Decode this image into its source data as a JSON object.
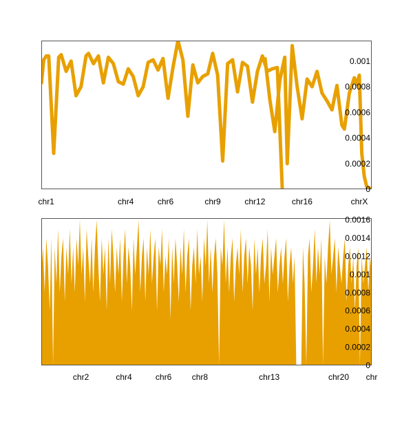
{
  "colors": {
    "series": "#E8A000",
    "frame": "#555555",
    "background": "#ffffff"
  },
  "chart_data": [
    {
      "type": "line",
      "grid": false,
      "legend": "none",
      "x_tick_labels": [
        "chr1",
        "chr4",
        "chr6",
        "chr9",
        "chr12",
        "chr16",
        "chrX"
      ],
      "x_tick_positions": [
        2,
        34,
        50,
        69,
        86,
        105,
        128
      ],
      "y_tick_labels": [
        "0",
        "0.0002",
        "0.0004",
        "0.0006",
        "0.0008",
        "0.001"
      ],
      "y_ticks": [
        0,
        0.0002,
        0.0004,
        0.0006,
        0.0008,
        0.001
      ],
      "xlim": [
        0,
        133
      ],
      "ylim": [
        0,
        0.00116
      ],
      "series": [
        {
          "values": [
            0.00082,
            0.00101,
            0.00104,
            0.00104,
            0.00028,
            0.00103,
            0.00105,
            0.00092,
            0.001,
            0.00073,
            0.0008,
            0.00104,
            0.00106,
            0.00098,
            0.00104,
            0.00083,
            0.00103,
            0.00098,
            0.00084,
            0.00082,
            0.00094,
            0.00088,
            0.00073,
            0.0008,
            0.00099,
            0.00101,
            0.00093,
            0.00102,
            0.00071,
            0.00095,
            0.00116,
            0.00101,
            0.00057,
            0.00097,
            0.00083,
            0.00088,
            0.0009,
            0.00106,
            0.00089,
            0.00022,
            0.00098,
            0.00101,
            0.00076,
            0.00099,
            0.00096,
            0.00068,
            0.00092,
            0.00104,
            0.00092,
            0.00094,
            0.00095,
            0.0
          ],
          "x": [
            0,
            1,
            2,
            3,
            5,
            7,
            8,
            10,
            12,
            14,
            16,
            18,
            19,
            21,
            23,
            25,
            27,
            29,
            31,
            33,
            35,
            37,
            39,
            41,
            43,
            45,
            47,
            49,
            51,
            53,
            55,
            57,
            59,
            61,
            63,
            65,
            67,
            69,
            71,
            73,
            75,
            77,
            79,
            81,
            83,
            85,
            87,
            89,
            91,
            93,
            95,
            97
          ]
        },
        {
          "values": [
            0.00103,
            0.0007,
            0.00045,
            0.00085,
            0.00103,
            0.0002,
            0.00112,
            0.0008,
            0.00055,
            0.00086,
            0.0008,
            0.00092,
            0.00075,
            0.00069,
            0.00062,
            0.00081,
            0.0005,
            0.00047,
            0.00075,
            0.00087,
            0.00082,
            0.00089,
            0.00028,
            0.0001,
            2e-05,
            0.0
          ],
          "x": [
            90,
            92,
            94,
            96,
            98,
            99,
            101,
            103,
            105,
            107,
            109,
            111,
            113,
            115,
            117,
            119,
            121,
            122,
            124,
            126,
            127,
            128,
            129,
            130,
            131,
            133
          ]
        }
      ]
    },
    {
      "type": "area",
      "grid": false,
      "legend": "none",
      "x_tick_labels": [
        "chr2",
        "chr4",
        "chr6",
        "chr8",
        "chr13",
        "chr20",
        "chr"
      ],
      "x_tick_positions": [
        12,
        25,
        37,
        48,
        69,
        90,
        100
      ],
      "y_tick_labels": [
        "0",
        "0.0002",
        "0.0004",
        "0.0006",
        "0.0008",
        "0.001",
        "0.0012",
        "0.0014",
        "0.0016"
      ],
      "y_ticks": [
        0,
        0.0002,
        0.0004,
        0.0006,
        0.0008,
        0.001,
        0.0012,
        0.0014,
        0.0016
      ],
      "xlim": [
        0,
        100
      ],
      "ylim": [
        0,
        0.00162
      ],
      "series": [
        {
          "values": [
            0.001,
            0.0013,
            0.0008,
            0.0014,
            0.0011,
            0.0006,
            0.0014,
            0.0,
            0.0013,
            0.0009,
            0.0015,
            0.0008,
            0.0012,
            0.0014,
            0.0007,
            0.0013,
            0.001,
            0.0015,
            0.0009,
            0.0013,
            0.0008,
            0.0014,
            0.0011,
            0.0016,
            0.001,
            0.0013,
            0.0007,
            0.0015,
            0.0012,
            0.0009,
            0.0014,
            0.0008,
            0.0013,
            0.0016,
            0.0011,
            0.0007,
            0.0014,
            0.001,
            0.0013,
            0.0006,
            0.0014,
            0.0009,
            0.0015,
            0.0012,
            0.0008,
            0.0013,
            0.001,
            0.0014,
            0.0007,
            0.0012,
            0.0015,
            0.0009,
            0.0013,
            0.0011,
            0.0006,
            0.0014,
            0.001,
            0.0013,
            0.0016,
            0.0008,
            0.0012,
            0.0014,
            0.0007,
            0.0013,
            0.001,
            0.0015,
            0.0009,
            0.0012,
            0.0014,
            0.0006,
            0.0013,
            0.0011,
            0.0015,
            0.0008,
            0.0012,
            0.001,
            0.0014,
            0.0005,
            0.0013,
            0.0009,
            0.0014,
            0.0011,
            0.0007,
            0.0013,
            0.001,
            0.0015,
            0.0008,
            0.0012,
            0.0014,
            0.0006,
            0.0011,
            0.0013,
            0.0009,
            0.0015,
            0.001,
            0.0012,
            0.0007,
            0.0014,
            0.0011,
            0.0016,
            0.0009,
            0.0013,
            0.0008,
            0.0012,
            0.0014,
            0.001,
            0.0,
            0.0013,
            0.0011,
            0.0016,
            0.0009,
            0.0013,
            0.0008,
            0.0012,
            0.0014,
            0.0007,
            0.0011,
            0.0013,
            0.001,
            0.0015,
            0.0008,
            0.0012,
            0.0014,
            0.0009,
            0.0013,
            0.0011,
            0.0006,
            0.0014,
            0.001,
            0.0013,
            0.0008,
            0.0012,
            0.0014,
            0.0009,
            0.0011,
            0.0015,
            0.0007,
            0.0013,
            0.001,
            0.0012,
            0.0014,
            0.0008,
            0.0011,
            0.0013,
            0.0009,
            0.0012,
            0.0014,
            0.0007,
            0.0011,
            0.0013,
            0.0009,
            0.0012,
            0.0,
            0.0,
            0.0,
            0.0,
            0.0013,
            0.0009,
            0.0,
            0.0012,
            0.0014,
            0.0008,
            0.0011,
            0.0015,
            0.0009,
            0.0013,
            0.001,
            0.0014,
            0.0,
            0.0012,
            0.0009,
            0.0013,
            0.0016,
            0.001,
            0.0012,
            0.0014,
            0.0008,
            0.0013,
            0.0011,
            0.0009,
            0.0012,
            0.0014,
            0.0007,
            0.0011,
            0.0013,
            0.0009,
            0.0012,
            0.0006,
            0.0011,
            0.0013,
            0.0,
            0.0012,
            0.0009,
            0.0011,
            0.0013,
            0.0008,
            0.0012,
            0.001
          ]
        }
      ]
    }
  ]
}
